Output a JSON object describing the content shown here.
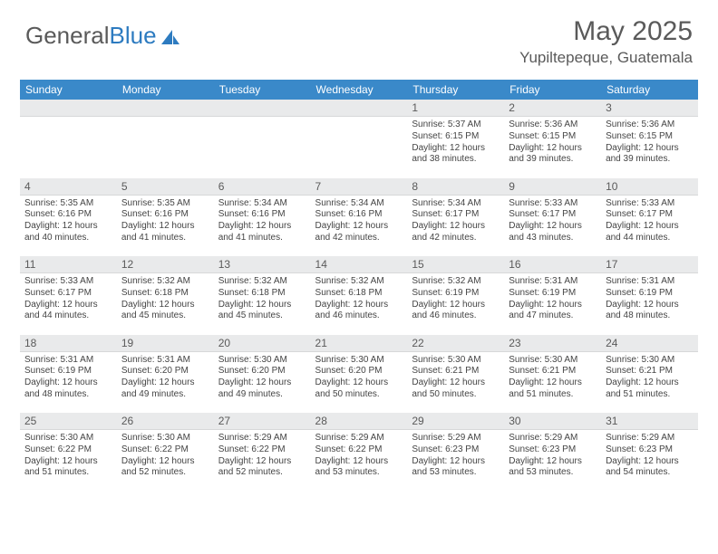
{
  "brand": {
    "part1": "General",
    "part2": "Blue"
  },
  "title": {
    "month": "May 2025",
    "location": "Yupiltepeque, Guatemala"
  },
  "colors": {
    "header_bg": "#3a89c9",
    "header_text": "#ffffff",
    "daynum_bg": "#e9eaeb",
    "text": "#444444",
    "brand_gray": "#5a5a5a",
    "brand_blue": "#2d7bc0"
  },
  "weekdays": [
    "Sunday",
    "Monday",
    "Tuesday",
    "Wednesday",
    "Thursday",
    "Friday",
    "Saturday"
  ],
  "weeks": [
    {
      "nums": [
        "",
        "",
        "",
        "",
        1,
        2,
        3
      ],
      "cells": [
        null,
        null,
        null,
        null,
        {
          "sunrise": "5:37 AM",
          "sunset": "6:15 PM",
          "daylight": "12 hours and 38 minutes."
        },
        {
          "sunrise": "5:36 AM",
          "sunset": "6:15 PM",
          "daylight": "12 hours and 39 minutes."
        },
        {
          "sunrise": "5:36 AM",
          "sunset": "6:15 PM",
          "daylight": "12 hours and 39 minutes."
        }
      ]
    },
    {
      "nums": [
        4,
        5,
        6,
        7,
        8,
        9,
        10
      ],
      "cells": [
        {
          "sunrise": "5:35 AM",
          "sunset": "6:16 PM",
          "daylight": "12 hours and 40 minutes."
        },
        {
          "sunrise": "5:35 AM",
          "sunset": "6:16 PM",
          "daylight": "12 hours and 41 minutes."
        },
        {
          "sunrise": "5:34 AM",
          "sunset": "6:16 PM",
          "daylight": "12 hours and 41 minutes."
        },
        {
          "sunrise": "5:34 AM",
          "sunset": "6:16 PM",
          "daylight": "12 hours and 42 minutes."
        },
        {
          "sunrise": "5:34 AM",
          "sunset": "6:17 PM",
          "daylight": "12 hours and 42 minutes."
        },
        {
          "sunrise": "5:33 AM",
          "sunset": "6:17 PM",
          "daylight": "12 hours and 43 minutes."
        },
        {
          "sunrise": "5:33 AM",
          "sunset": "6:17 PM",
          "daylight": "12 hours and 44 minutes."
        }
      ]
    },
    {
      "nums": [
        11,
        12,
        13,
        14,
        15,
        16,
        17
      ],
      "cells": [
        {
          "sunrise": "5:33 AM",
          "sunset": "6:17 PM",
          "daylight": "12 hours and 44 minutes."
        },
        {
          "sunrise": "5:32 AM",
          "sunset": "6:18 PM",
          "daylight": "12 hours and 45 minutes."
        },
        {
          "sunrise": "5:32 AM",
          "sunset": "6:18 PM",
          "daylight": "12 hours and 45 minutes."
        },
        {
          "sunrise": "5:32 AM",
          "sunset": "6:18 PM",
          "daylight": "12 hours and 46 minutes."
        },
        {
          "sunrise": "5:32 AM",
          "sunset": "6:19 PM",
          "daylight": "12 hours and 46 minutes."
        },
        {
          "sunrise": "5:31 AM",
          "sunset": "6:19 PM",
          "daylight": "12 hours and 47 minutes."
        },
        {
          "sunrise": "5:31 AM",
          "sunset": "6:19 PM",
          "daylight": "12 hours and 48 minutes."
        }
      ]
    },
    {
      "nums": [
        18,
        19,
        20,
        21,
        22,
        23,
        24
      ],
      "cells": [
        {
          "sunrise": "5:31 AM",
          "sunset": "6:19 PM",
          "daylight": "12 hours and 48 minutes."
        },
        {
          "sunrise": "5:31 AM",
          "sunset": "6:20 PM",
          "daylight": "12 hours and 49 minutes."
        },
        {
          "sunrise": "5:30 AM",
          "sunset": "6:20 PM",
          "daylight": "12 hours and 49 minutes."
        },
        {
          "sunrise": "5:30 AM",
          "sunset": "6:20 PM",
          "daylight": "12 hours and 50 minutes."
        },
        {
          "sunrise": "5:30 AM",
          "sunset": "6:21 PM",
          "daylight": "12 hours and 50 minutes."
        },
        {
          "sunrise": "5:30 AM",
          "sunset": "6:21 PM",
          "daylight": "12 hours and 51 minutes."
        },
        {
          "sunrise": "5:30 AM",
          "sunset": "6:21 PM",
          "daylight": "12 hours and 51 minutes."
        }
      ]
    },
    {
      "nums": [
        25,
        26,
        27,
        28,
        29,
        30,
        31
      ],
      "cells": [
        {
          "sunrise": "5:30 AM",
          "sunset": "6:22 PM",
          "daylight": "12 hours and 51 minutes."
        },
        {
          "sunrise": "5:30 AM",
          "sunset": "6:22 PM",
          "daylight": "12 hours and 52 minutes."
        },
        {
          "sunrise": "5:29 AM",
          "sunset": "6:22 PM",
          "daylight": "12 hours and 52 minutes."
        },
        {
          "sunrise": "5:29 AM",
          "sunset": "6:22 PM",
          "daylight": "12 hours and 53 minutes."
        },
        {
          "sunrise": "5:29 AM",
          "sunset": "6:23 PM",
          "daylight": "12 hours and 53 minutes."
        },
        {
          "sunrise": "5:29 AM",
          "sunset": "6:23 PM",
          "daylight": "12 hours and 53 minutes."
        },
        {
          "sunrise": "5:29 AM",
          "sunset": "6:23 PM",
          "daylight": "12 hours and 54 minutes."
        }
      ]
    }
  ],
  "labels": {
    "sunrise": "Sunrise:",
    "sunset": "Sunset:",
    "daylight": "Daylight:"
  }
}
